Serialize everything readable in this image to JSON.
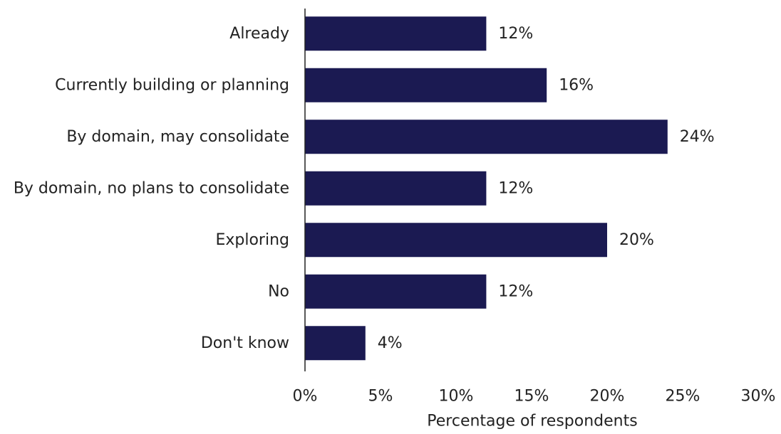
{
  "chart_data": {
    "type": "bar",
    "orientation": "horizontal",
    "categories": [
      "Already",
      "Currently building or planning",
      "By domain, may consolidate",
      "By domain, no plans to consolidate",
      "Exploring",
      "No",
      "Don't know"
    ],
    "values": [
      12,
      16,
      24,
      12,
      20,
      12,
      4
    ],
    "value_labels": [
      "12%",
      "16%",
      "24%",
      "12%",
      "20%",
      "12%",
      "4%"
    ],
    "xlabel": "Percentage of respondents",
    "ylabel": "",
    "title": "",
    "xlim": [
      0,
      30
    ],
    "xticks": [
      0,
      5,
      10,
      15,
      20,
      25,
      30
    ],
    "xtick_labels": [
      "0%",
      "5%",
      "10%",
      "15%",
      "20%",
      "25%",
      "30%"
    ],
    "grid": false,
    "legend": "none",
    "bar_color": "#1b1a52"
  }
}
